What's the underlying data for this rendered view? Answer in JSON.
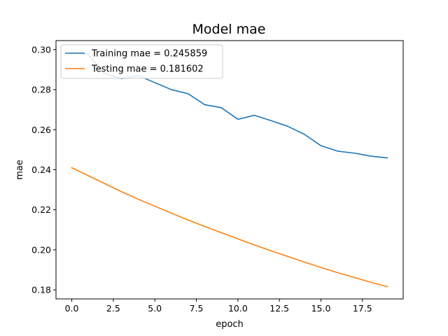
{
  "chart_data": {
    "type": "line",
    "title": "Model mae",
    "xlabel": "epoch",
    "ylabel": "mae",
    "xlim": [
      -0.95,
      19.95
    ],
    "ylim": [
      0.1755,
      0.3045
    ],
    "xticks": [
      0.0,
      2.5,
      5.0,
      7.5,
      10.0,
      12.5,
      15.0,
      17.5
    ],
    "xtick_labels": [
      "0.0",
      "2.5",
      "5.0",
      "7.5",
      "10.0",
      "12.5",
      "15.0",
      "17.5"
    ],
    "yticks": [
      0.18,
      0.2,
      0.22,
      0.24,
      0.26,
      0.28,
      0.3
    ],
    "ytick_labels": [
      "0.18",
      "0.20",
      "0.22",
      "0.24",
      "0.26",
      "0.28",
      "0.30"
    ],
    "grid": false,
    "legend": "top-left",
    "x": [
      0,
      1,
      2,
      3,
      4,
      5,
      6,
      7,
      8,
      9,
      10,
      11,
      12,
      13,
      14,
      15,
      16,
      17,
      18,
      19
    ],
    "series": [
      {
        "name": "Training mae = 0.245859",
        "color": "#1f77b4",
        "values": [
          0.2985,
          0.2975,
          0.288,
          0.2855,
          0.287,
          0.2835,
          0.28,
          0.278,
          0.2725,
          0.271,
          0.2652,
          0.2672,
          0.2645,
          0.2617,
          0.2577,
          0.252,
          0.2493,
          0.2483,
          0.2468,
          0.2459
        ]
      },
      {
        "name": "Testing mae = 0.181602",
        "color": "#ff7f0e",
        "values": [
          0.241,
          0.237,
          0.233,
          0.229,
          0.2253,
          0.2218,
          0.2183,
          0.2149,
          0.2117,
          0.2086,
          0.2055,
          0.2024,
          0.1995,
          0.1967,
          0.1939,
          0.1912,
          0.1886,
          0.1862,
          0.1838,
          0.1816
        ]
      }
    ]
  }
}
